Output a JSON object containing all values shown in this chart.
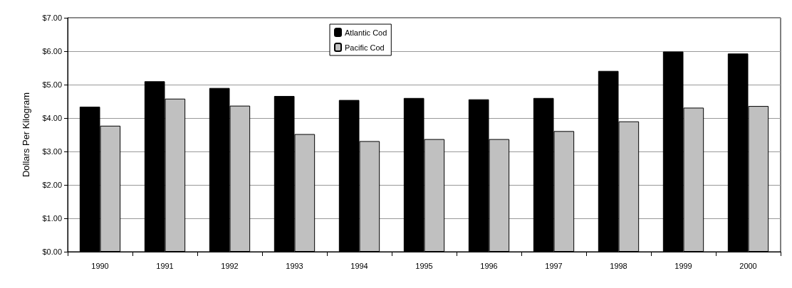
{
  "chart_data": {
    "type": "bar",
    "ylabel": "Dollars Per Kilogram",
    "categories": [
      "1990",
      "1991",
      "1992",
      "1993",
      "1994",
      "1995",
      "1996",
      "1997",
      "1998",
      "1999",
      "2000"
    ],
    "series": [
      {
        "name": "Atlantic Cod",
        "color": "#000000",
        "values": [
          4.34,
          5.1,
          4.9,
          4.66,
          4.54,
          4.6,
          4.56,
          4.6,
          5.41,
          5.99,
          5.93
        ]
      },
      {
        "name": "Pacific Cod",
        "color": "#c0c0c0",
        "values": [
          3.77,
          4.58,
          4.37,
          3.52,
          3.31,
          3.37,
          3.37,
          3.61,
          3.9,
          4.31,
          4.36
        ]
      }
    ],
    "ylim": [
      0,
      7
    ],
    "yticks": [
      {
        "value": 0,
        "label": "$0.00"
      },
      {
        "value": 1,
        "label": "$1.00"
      },
      {
        "value": 2,
        "label": "$2.00"
      },
      {
        "value": 3,
        "label": "$3.00"
      },
      {
        "value": 4,
        "label": "$4.00"
      },
      {
        "value": 5,
        "label": "$5.00"
      },
      {
        "value": 6,
        "label": "$6.00"
      },
      {
        "value": 7,
        "label": "$7.00"
      }
    ],
    "grid": "y",
    "legend": "top"
  }
}
